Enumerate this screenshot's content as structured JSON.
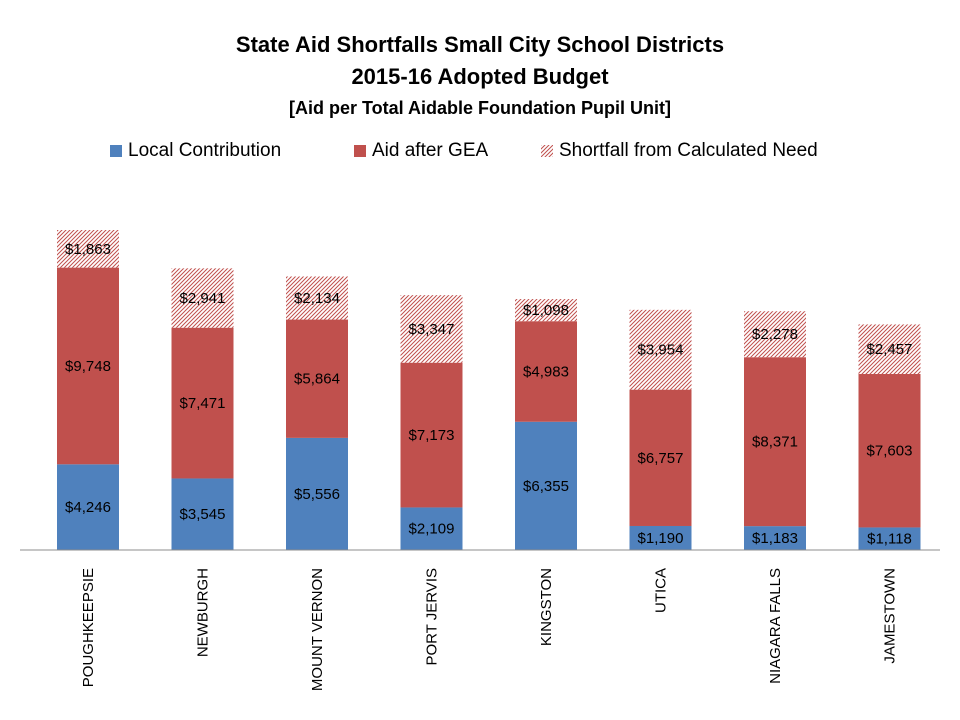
{
  "chart_data": {
    "type": "bar",
    "stacked": true,
    "title": "State Aid Shortfalls Small City School Districts",
    "subtitle": "2015-16 Adopted Budget",
    "subtitle2": "[Aid per Total Aidable Foundation Pupil Unit]",
    "categories": [
      "POUGHKEEPSIE",
      "NEWBURGH",
      "MOUNT VERNON",
      "PORT JERVIS",
      "KINGSTON",
      "UTICA",
      "NIAGARA FALLS",
      "JAMESTOWN"
    ],
    "series": [
      {
        "name": "Local Contribution",
        "color": "#4f81bd",
        "style": "solid",
        "values": [
          4246,
          3545,
          5556,
          2109,
          6355,
          1190,
          1183,
          1118
        ],
        "labels": [
          "$4,246",
          "$3,545",
          "$5,556",
          "$2,109",
          "$6,355",
          "$1,190",
          "$1,183",
          "$1,118"
        ]
      },
      {
        "name": "Aid after GEA",
        "color": "#c0504d",
        "style": "solid",
        "values": [
          9748,
          7471,
          5864,
          7173,
          4983,
          6757,
          8371,
          7603
        ],
        "labels": [
          "$9,748",
          "$7,471",
          "$5,864",
          "$7,173",
          "$4,983",
          "$6,757",
          "$8,371",
          "$7,603"
        ]
      },
      {
        "name": "Shortfall from Calculated Need",
        "color": "#c0504d",
        "style": "hatched",
        "values": [
          1863,
          2941,
          2134,
          3347,
          1098,
          3954,
          2278,
          2457
        ],
        "labels": [
          "$1,863",
          "$2,941",
          "$2,134",
          "$3,347",
          "$1,098",
          "$3,954",
          "$2,278",
          "$2,457"
        ]
      }
    ],
    "ylim": [
      0,
      16000
    ],
    "xlabel": "",
    "ylabel": "",
    "legend_position": "top",
    "grid": false
  }
}
